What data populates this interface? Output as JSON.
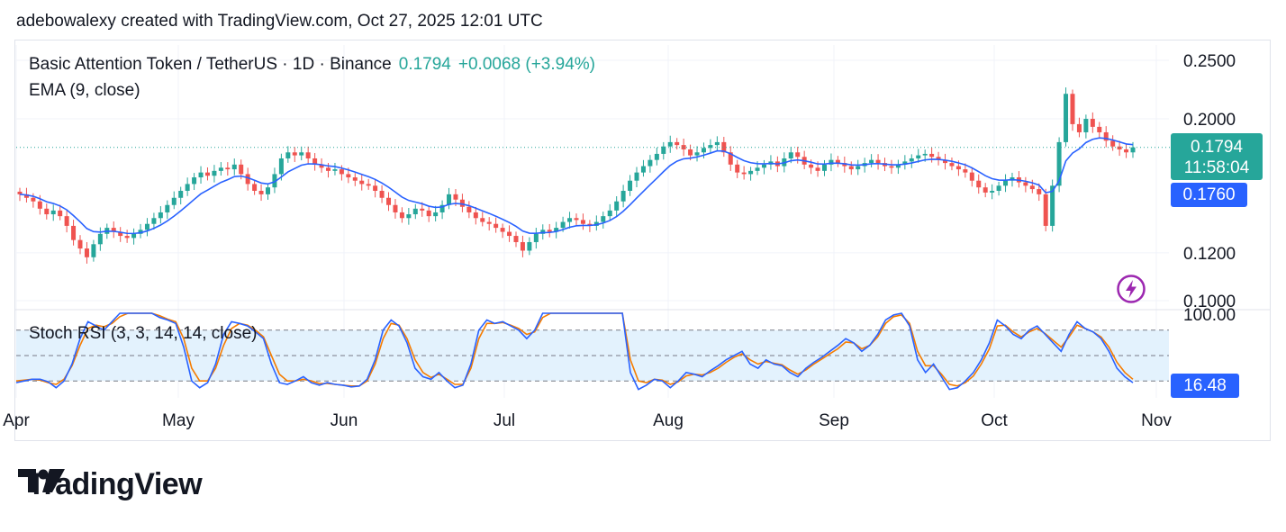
{
  "header": {
    "text": "adebowalexy created with TradingView.com, Oct 27, 2025 12:01 UTC"
  },
  "legend": {
    "symbol": "Basic Attention Token / TetherUS · 1D · Binance",
    "price": "0.1794",
    "change": "+0.0068 (+3.94%)",
    "ema": "EMA (9, close)",
    "stoch": "Stoch RSI (3, 3, 14, 14, close)"
  },
  "badges": {
    "last_price": "0.1794",
    "countdown": "11:58:04",
    "ema_value": "0.1760",
    "stoch_value": "16.48"
  },
  "brand": {
    "name": "TradingView",
    "logo_icon": "tradingview-logo-icon"
  },
  "colors": {
    "up": "#26a69a",
    "down": "#ef5350",
    "ema": "#2962ff",
    "stoch_k": "#2962ff",
    "stoch_d": "#f57c00",
    "band": "#e3f2fd",
    "accent_badge": "#2962ff"
  },
  "chart_data": [
    {
      "type": "candlestick",
      "title": "Basic Attention Token / TetherUS · 1D · Binance",
      "y_ticks": [
        "0.2500",
        "0.2000",
        "0.1200",
        "0.1000"
      ],
      "y_tick_values": [
        0.25,
        0.2,
        0.12,
        0.1
      ],
      "scale": "log",
      "ylim": [
        0.096,
        0.268
      ],
      "x_ticks": [
        "Apr",
        "May",
        "Jun",
        "Jul",
        "Aug",
        "Sep",
        "Oct",
        "Nov"
      ],
      "last_price": 0.1794,
      "ema_last": 0.176,
      "series": [
        {
          "name": "EMA (9, close)",
          "kind": "line"
        }
      ],
      "candles_approx_close": [
        0.15,
        0.148,
        0.146,
        0.142,
        0.139,
        0.141,
        0.138,
        0.133,
        0.126,
        0.122,
        0.118,
        0.124,
        0.129,
        0.132,
        0.13,
        0.128,
        0.127,
        0.129,
        0.131,
        0.134,
        0.137,
        0.14,
        0.144,
        0.148,
        0.152,
        0.156,
        0.16,
        0.163,
        0.161,
        0.164,
        0.166,
        0.165,
        0.168,
        0.162,
        0.156,
        0.152,
        0.15,
        0.154,
        0.162,
        0.172,
        0.176,
        0.174,
        0.176,
        0.172,
        0.168,
        0.166,
        0.164,
        0.165,
        0.162,
        0.16,
        0.158,
        0.156,
        0.155,
        0.152,
        0.148,
        0.144,
        0.14,
        0.137,
        0.139,
        0.142,
        0.141,
        0.138,
        0.14,
        0.144,
        0.15,
        0.147,
        0.143,
        0.14,
        0.137,
        0.135,
        0.134,
        0.132,
        0.13,
        0.128,
        0.125,
        0.121,
        0.125,
        0.129,
        0.131,
        0.13,
        0.132,
        0.135,
        0.137,
        0.136,
        0.134,
        0.133,
        0.135,
        0.138,
        0.141,
        0.146,
        0.152,
        0.158,
        0.163,
        0.167,
        0.171,
        0.175,
        0.18,
        0.183,
        0.181,
        0.178,
        0.174,
        0.176,
        0.179,
        0.181,
        0.183,
        0.176,
        0.168,
        0.163,
        0.162,
        0.164,
        0.166,
        0.168,
        0.17,
        0.167,
        0.172,
        0.176,
        0.173,
        0.168,
        0.166,
        0.164,
        0.168,
        0.171,
        0.169,
        0.167,
        0.165,
        0.167,
        0.169,
        0.171,
        0.169,
        0.167,
        0.166,
        0.168,
        0.17,
        0.172,
        0.174,
        0.175,
        0.173,
        0.171,
        0.169,
        0.167,
        0.165,
        0.163,
        0.158,
        0.154,
        0.151,
        0.152,
        0.155,
        0.158,
        0.16,
        0.157,
        0.155,
        0.153,
        0.15,
        0.133,
        0.155,
        0.183,
        0.22,
        0.196,
        0.19,
        0.2,
        0.194,
        0.19,
        0.184,
        0.18,
        0.178,
        0.176,
        0.1794
      ]
    },
    {
      "type": "line",
      "title": "Stoch RSI (3, 3, 14, 14, close)",
      "y_ticks": [
        "100.00"
      ],
      "ylim": [
        0,
        100
      ],
      "bands": [
        20,
        50,
        80
      ],
      "last_value": 16.48,
      "series": [
        {
          "name": "K",
          "values": [
            18,
            20,
            22,
            22,
            19,
            12,
            20,
            40,
            70,
            90,
            85,
            80,
            90,
            100,
            100,
            100,
            100,
            100,
            95,
            92,
            88,
            60,
            20,
            12,
            18,
            40,
            75,
            90,
            88,
            85,
            78,
            70,
            40,
            18,
            16,
            20,
            25,
            18,
            15,
            18,
            16,
            15,
            13,
            14,
            22,
            45,
            80,
            92,
            85,
            65,
            35,
            25,
            22,
            30,
            20,
            12,
            15,
            40,
            80,
            92,
            88,
            90,
            85,
            80,
            70,
            80,
            100,
            100,
            100,
            100,
            100,
            100,
            100,
            100,
            100,
            100,
            100,
            30,
            10,
            15,
            22,
            20,
            12,
            20,
            30,
            28,
            25,
            32,
            38,
            45,
            50,
            55,
            40,
            35,
            45,
            40,
            38,
            30,
            25,
            35,
            42,
            48,
            55,
            62,
            70,
            65,
            55,
            62,
            75,
            92,
            98,
            100,
            85,
            45,
            30,
            40,
            25,
            10,
            12,
            20,
            30,
            45,
            65,
            92,
            85,
            75,
            70,
            80,
            85,
            75,
            65,
            55,
            75,
            90,
            82,
            78,
            70,
            55,
            35,
            25,
            18
          ]
        },
        {
          "name": "D",
          "values": [
            20,
            21,
            22,
            21,
            18,
            16,
            22,
            38,
            62,
            82,
            86,
            84,
            88,
            96,
            100,
            100,
            100,
            100,
            97,
            93,
            90,
            70,
            35,
            20,
            20,
            35,
            62,
            82,
            88,
            86,
            80,
            72,
            50,
            28,
            20,
            20,
            22,
            20,
            17,
            17,
            16,
            15,
            14,
            14,
            20,
            40,
            70,
            88,
            86,
            70,
            45,
            30,
            24,
            28,
            22,
            16,
            16,
            35,
            70,
            88,
            88,
            89,
            86,
            82,
            75,
            78,
            95,
            100,
            100,
            100,
            100,
            100,
            100,
            100,
            100,
            100,
            100,
            45,
            20,
            18,
            22,
            21,
            16,
            19,
            26,
            28,
            27,
            30,
            35,
            42,
            48,
            52,
            45,
            40,
            43,
            41,
            39,
            33,
            28,
            33,
            40,
            46,
            52,
            58,
            66,
            65,
            58,
            62,
            72,
            88,
            96,
            98,
            88,
            55,
            38,
            38,
            28,
            16,
            14,
            18,
            26,
            40,
            58,
            85,
            86,
            78,
            72,
            78,
            82,
            76,
            68,
            60,
            72,
            86,
            82,
            78,
            72,
            60,
            42,
            30,
            22
          ]
        }
      ]
    }
  ]
}
